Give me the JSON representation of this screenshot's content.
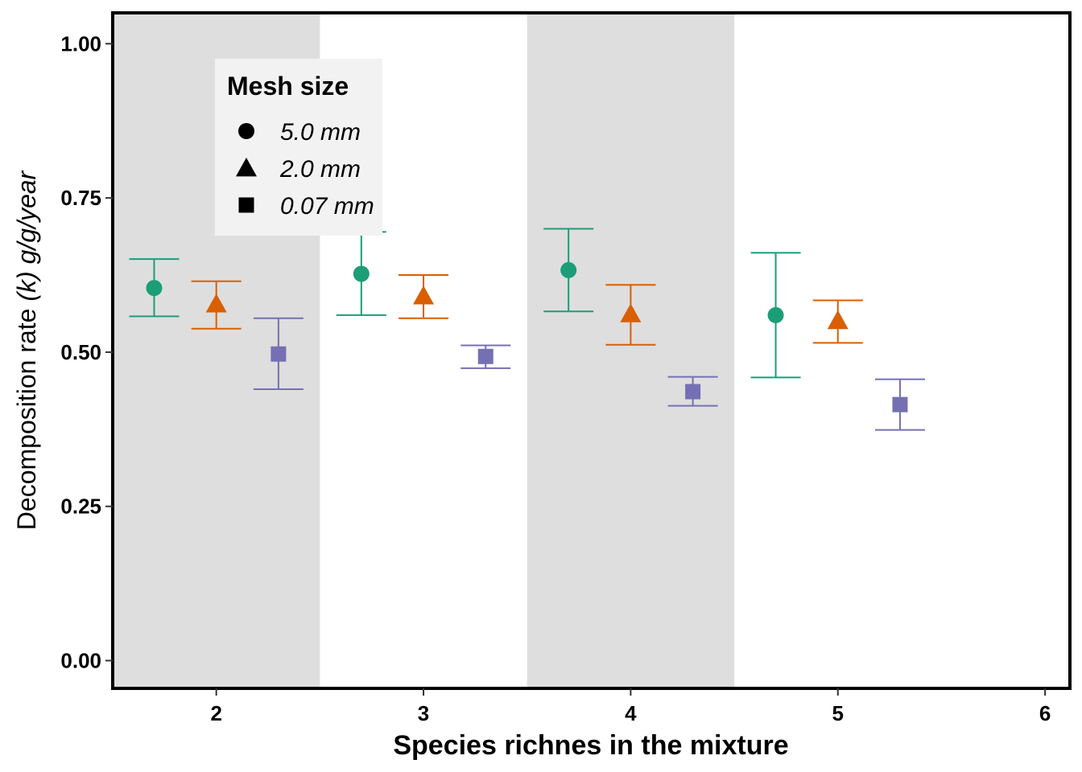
{
  "chart_data": {
    "type": "scatter",
    "title": "",
    "xlabel": "Species richnes in the mixture",
    "ylabel": {
      "prefix": "Decomposition rate ",
      "k_part": "(k)",
      "unit": "g/g/year"
    },
    "xlim": [
      1.5,
      6.12
    ],
    "ylim": [
      -0.045,
      1.05
    ],
    "x_ticks": [
      "2",
      "3",
      "4",
      "5",
      "6"
    ],
    "y_ticks": [
      "0.00",
      "0.25",
      "0.50",
      "0.75",
      "1.00"
    ],
    "shaded_bands": [
      [
        1.5,
        2.5
      ],
      [
        3.5,
        4.5
      ]
    ],
    "legend": {
      "title": "Mesh size",
      "placement": "top-left inside plot"
    },
    "series": [
      {
        "name": "5.0 mm",
        "shape": "circle",
        "color": "#1b9e77",
        "offset": -0.3,
        "points": [
          {
            "x": 2,
            "y": 0.604,
            "lo": 0.558,
            "hi": 0.651
          },
          {
            "x": 3,
            "y": 0.627,
            "lo": 0.56,
            "hi": 0.695
          },
          {
            "x": 4,
            "y": 0.633,
            "lo": 0.566,
            "hi": 0.7
          },
          {
            "x": 5,
            "y": 0.56,
            "lo": 0.459,
            "hi": 0.661
          }
        ]
      },
      {
        "name": "2.0 mm",
        "shape": "triangle",
        "color": "#d95f02",
        "offset": 0.0,
        "points": [
          {
            "x": 2,
            "y": 0.578,
            "lo": 0.538,
            "hi": 0.615
          },
          {
            "x": 3,
            "y": 0.591,
            "lo": 0.555,
            "hi": 0.625
          },
          {
            "x": 4,
            "y": 0.562,
            "lo": 0.512,
            "hi": 0.609
          },
          {
            "x": 5,
            "y": 0.551,
            "lo": 0.515,
            "hi": 0.584
          }
        ]
      },
      {
        "name": "0.07 mm",
        "shape": "square",
        "color": "#7570b3",
        "offset": 0.3,
        "points": [
          {
            "x": 2,
            "y": 0.497,
            "lo": 0.44,
            "hi": 0.555
          },
          {
            "x": 3,
            "y": 0.493,
            "lo": 0.474,
            "hi": 0.511
          },
          {
            "x": 4,
            "y": 0.436,
            "lo": 0.413,
            "hi": 0.46
          },
          {
            "x": 5,
            "y": 0.415,
            "lo": 0.374,
            "hi": 0.456
          }
        ]
      }
    ]
  }
}
